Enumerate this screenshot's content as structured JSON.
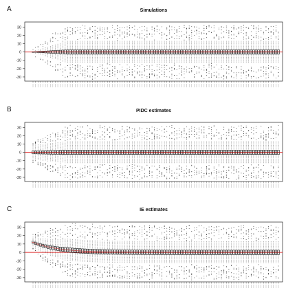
{
  "chart_data": [
    {
      "type": "box",
      "panel_label": "A",
      "title": "Simulations",
      "yticks": [
        -30,
        -20,
        -10,
        0,
        10,
        20,
        30
      ],
      "ylim": [
        -35,
        36
      ],
      "n_boxes": 100,
      "reference_line": 0,
      "reference_color": "#e03030",
      "box_color": "#111111",
      "median_color": "#e03030",
      "spread_start": 1,
      "spread_plateau": 12,
      "outlier_max": 30,
      "initial_bias": 0
    },
    {
      "type": "box",
      "panel_label": "B",
      "title": "PIDC estimates",
      "yticks": [
        -30,
        -20,
        -10,
        0,
        10,
        20,
        30
      ],
      "ylim": [
        -35,
        36
      ],
      "n_boxes": 100,
      "reference_line": 0,
      "reference_color": "#e03030",
      "box_color": "#111111",
      "median_color": "#e03030",
      "spread_start": 8,
      "spread_plateau": 12,
      "outlier_max": 30,
      "initial_bias": 0
    },
    {
      "type": "box",
      "panel_label": "C",
      "title": "IE estimates",
      "yticks": [
        -30,
        -20,
        -10,
        0,
        10,
        20,
        30
      ],
      "ylim": [
        -35,
        36
      ],
      "n_boxes": 100,
      "reference_line": 0,
      "reference_color": "#e03030",
      "box_color": "#111111",
      "median_color": "#e03030",
      "spread_start": 6,
      "spread_plateau": 12,
      "outlier_max": 30,
      "initial_bias": 12
    }
  ]
}
